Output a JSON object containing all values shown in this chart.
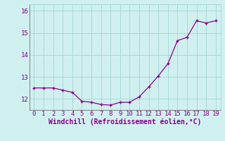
{
  "x": [
    0,
    1,
    2,
    3,
    4,
    5,
    6,
    7,
    8,
    9,
    10,
    11,
    12,
    13,
    14,
    15,
    16,
    17,
    18,
    19
  ],
  "y": [
    12.5,
    12.5,
    12.5,
    12.4,
    12.3,
    11.9,
    11.85,
    11.75,
    11.72,
    11.85,
    11.85,
    12.1,
    12.55,
    13.05,
    13.6,
    14.65,
    14.8,
    15.55,
    15.45,
    15.55
  ],
  "line_color": "#880088",
  "marker_color": "#880088",
  "bg_color": "#d0f0f0",
  "grid_color": "#a8d8d8",
  "xlabel": "Windchill (Refroidissement éolien,°C)",
  "ylim": [
    11.5,
    16.3
  ],
  "xlim": [
    -0.5,
    19.5
  ],
  "yticks": [
    12,
    13,
    14,
    15,
    16
  ],
  "xticks": [
    0,
    1,
    2,
    3,
    4,
    5,
    6,
    7,
    8,
    9,
    10,
    11,
    12,
    13,
    14,
    15,
    16,
    17,
    18,
    19
  ],
  "xlabel_fontsize": 7.0,
  "tick_fontsize": 6.5
}
